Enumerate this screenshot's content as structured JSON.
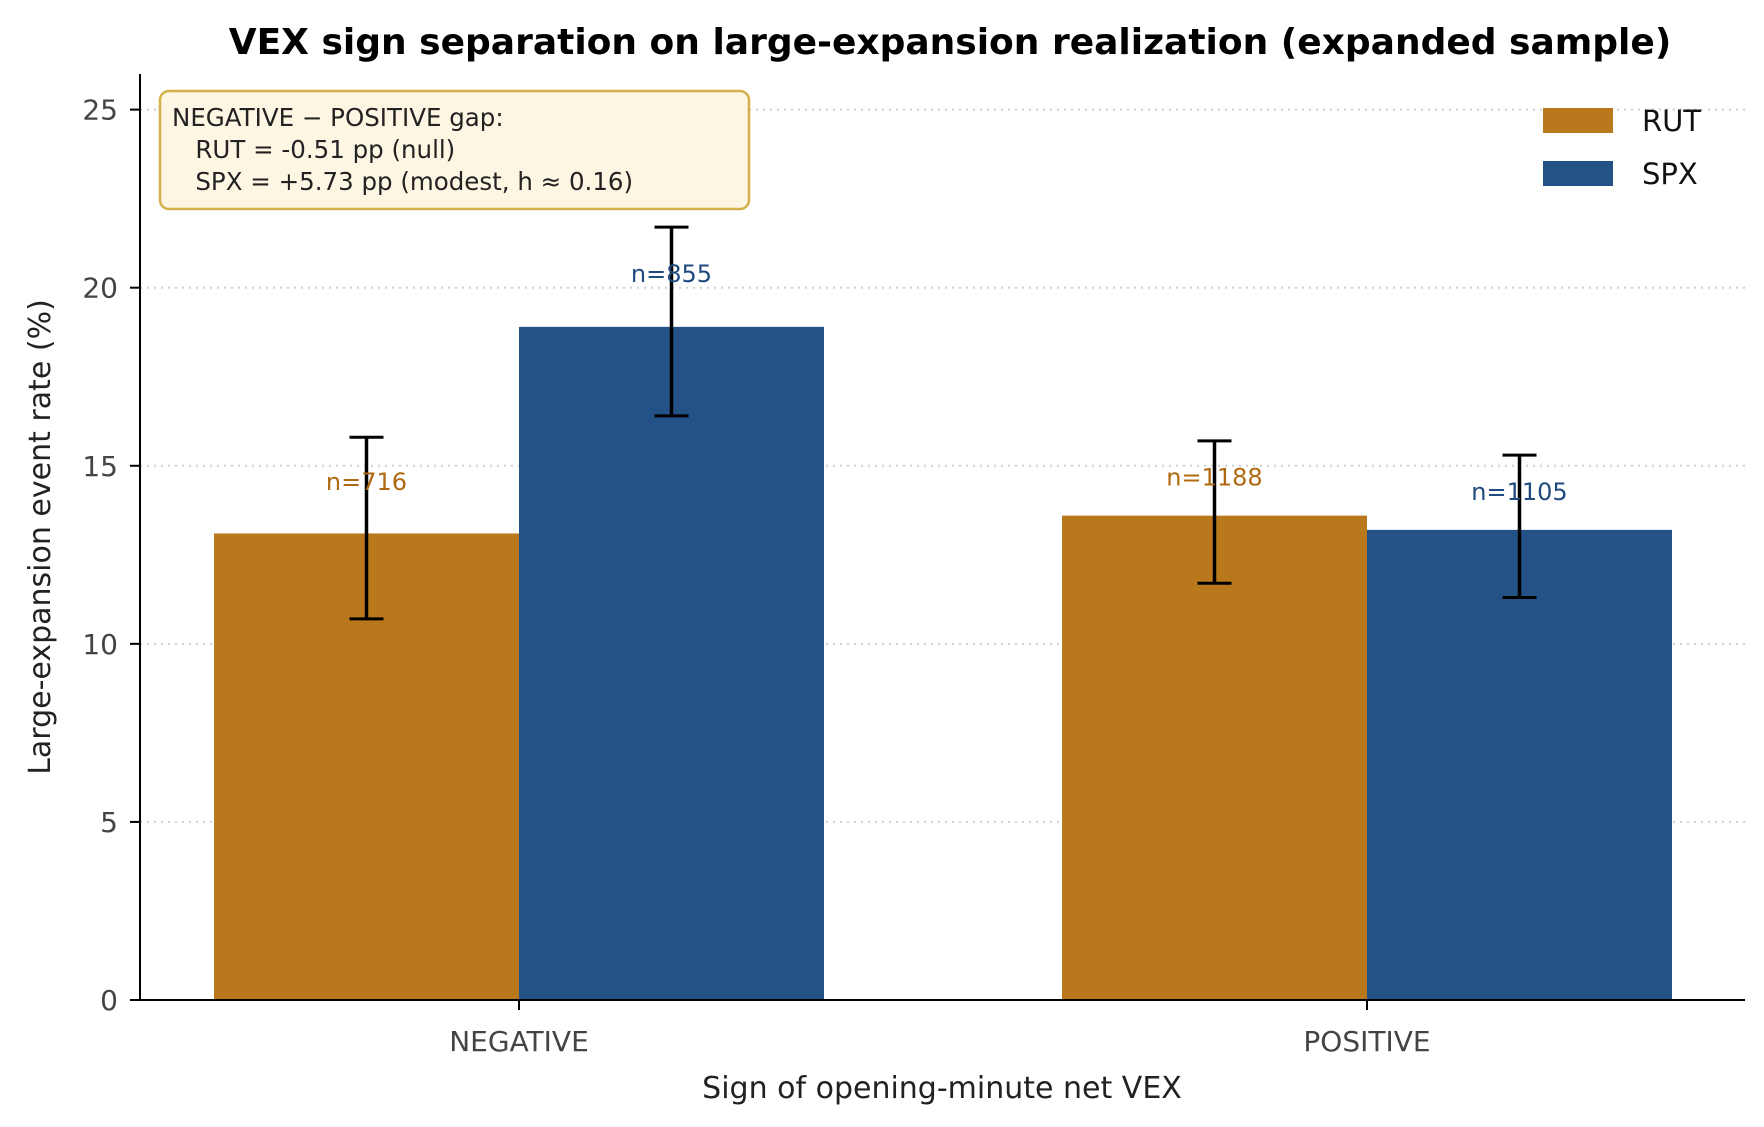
{
  "chart_data": {
    "type": "bar",
    "title": "VEX sign separation on large-expansion realization (expanded sample)",
    "xlabel": "Sign of opening-minute net VEX",
    "ylabel": "Large-expansion event rate (%)",
    "ylim": [
      0,
      26
    ],
    "yticks": [
      0,
      5,
      10,
      15,
      20,
      25
    ],
    "categories": [
      "NEGATIVE",
      "POSITIVE"
    ],
    "grid": "horizontal dotted",
    "legend_position": "top-right",
    "series": [
      {
        "name": "RUT",
        "color": "#b8781b",
        "label_color": "#b06a12",
        "values": [
          13.1,
          13.6
        ],
        "err_low": [
          10.7,
          11.7
        ],
        "err_high": [
          15.8,
          15.7
        ],
        "n_labels": [
          "n=716",
          "n=1188"
        ]
      },
      {
        "name": "SPX",
        "color": "#245287",
        "label_color": "#1f4a7f",
        "values": [
          18.9,
          13.2
        ],
        "err_low": [
          16.4,
          11.3
        ],
        "err_high": [
          21.7,
          15.3
        ],
        "n_labels": [
          "n=855",
          "n=1105"
        ]
      }
    ],
    "annotation": {
      "lines": [
        "NEGATIVE − POSITIVE gap:",
        "   RUT = -0.51 pp (null)",
        "   SPX = +5.73 pp (modest, h ≈ 0.16)"
      ],
      "background": "#fdf6e3",
      "border": "#d4b04a"
    }
  }
}
